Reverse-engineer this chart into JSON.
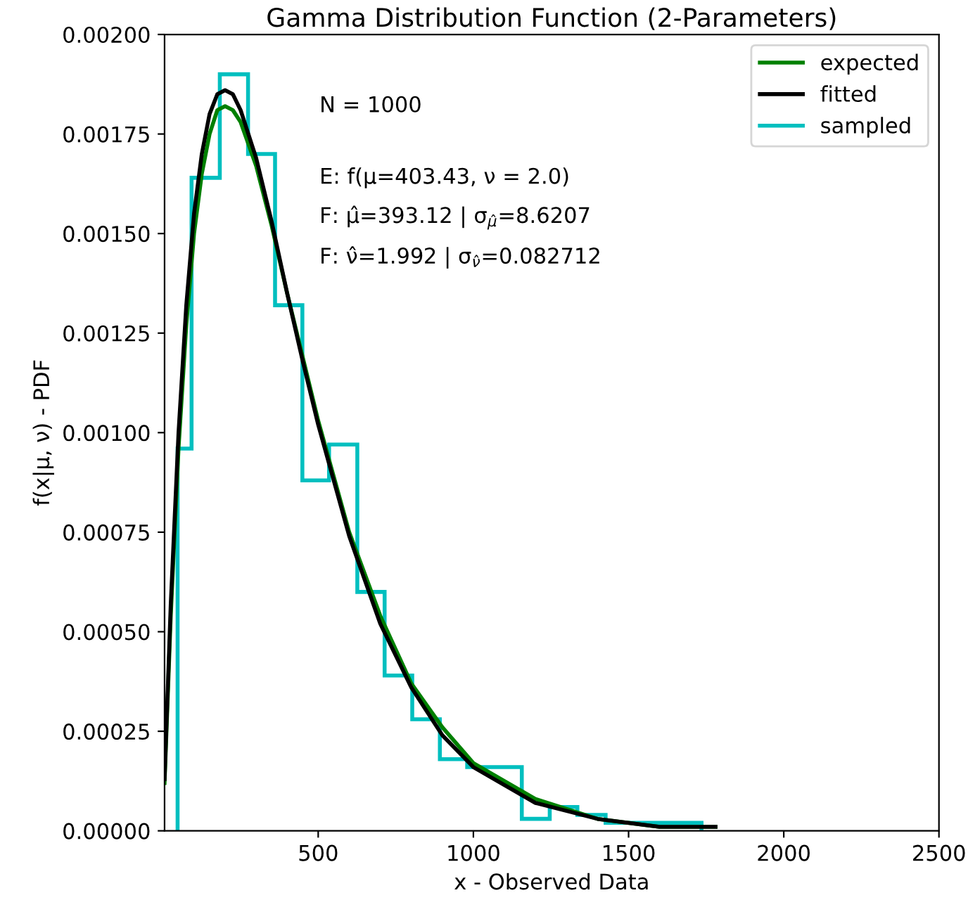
{
  "chart_data": {
    "type": "line",
    "title": "Gamma Distribution Function (2-Parameters)",
    "xlabel": "x - Observed Data",
    "ylabel": "f(x|μ, ν) - PDF",
    "series": [
      {
        "name": "expected",
        "color": "#008000",
        "x": [
          5,
          25,
          50,
          75,
          100,
          125,
          150,
          175,
          200,
          225,
          250,
          300,
          350,
          400,
          450,
          500,
          600,
          700,
          800,
          900,
          1000,
          1200,
          1400,
          1600,
          1780
        ],
        "values": [
          0.00012,
          0.00054,
          0.00096,
          0.00127,
          0.0015,
          0.00165,
          0.00175,
          0.00181,
          0.00182,
          0.00181,
          0.00178,
          0.00167,
          0.00152,
          0.00135,
          0.00119,
          0.00103,
          0.00075,
          0.00054,
          0.00037,
          0.00026,
          0.00017,
          8e-05,
          3e-05,
          1e-05,
          1e-05
        ]
      },
      {
        "name": "fitted",
        "color": "#000000",
        "x": [
          5,
          25,
          50,
          75,
          100,
          125,
          150,
          175,
          200,
          225,
          250,
          300,
          350,
          400,
          450,
          500,
          600,
          700,
          800,
          900,
          1000,
          1200,
          1400,
          1600,
          1780
        ],
        "values": [
          0.00013,
          0.00057,
          0.001,
          0.00132,
          0.00155,
          0.0017,
          0.0018,
          0.00185,
          0.00186,
          0.00185,
          0.00181,
          0.00169,
          0.00153,
          0.00135,
          0.00118,
          0.00102,
          0.00074,
          0.00052,
          0.00036,
          0.00024,
          0.00016,
          7e-05,
          3e-05,
          1e-05,
          1e-05
        ]
      },
      {
        "name": "sampled",
        "type": "histogram",
        "color": "#00bfbf",
        "bins": [
          47,
          92,
          183,
          274,
          361,
          449,
          535,
          626,
          714,
          803,
          892,
          980,
          1156,
          1246,
          1335,
          1426,
          1735
        ],
        "values": [
          0.00096,
          0.00164,
          0.0019,
          0.0017,
          0.00132,
          0.00088,
          0.00097,
          0.0006,
          0.00039,
          0.00028,
          0.00018,
          0.00016,
          3e-05,
          6e-05,
          4e-05,
          2e-05
        ]
      }
    ],
    "xlim": [
      5,
      2500
    ],
    "xticks": [
      500,
      1000,
      1500,
      2000,
      2500
    ],
    "ylim": [
      0,
      0.002
    ],
    "yticks": [
      {
        "value": 0,
        "label": "0.00000"
      },
      {
        "value": 0.00025,
        "label": "0.00025"
      },
      {
        "value": 0.0005,
        "label": "0.00050"
      },
      {
        "value": 0.00075,
        "label": "0.00075"
      },
      {
        "value": 0.001,
        "label": "0.00100"
      },
      {
        "value": 0.00125,
        "label": "0.00125"
      },
      {
        "value": 0.0015,
        "label": "0.00150"
      },
      {
        "value": 0.00175,
        "label": "0.00175"
      },
      {
        "value": 0.002,
        "label": "0.00200"
      }
    ],
    "annotations": [
      "N = 1000",
      "E: f(μ=403.43, ν = 2.0)",
      "F: μ̂=393.12 | σ$_{μ̂}$=8.6207",
      "F: ν̂=1.992 | σ$_{ν̂}$=0.082712"
    ],
    "legend": "top right",
    "grid": false
  }
}
